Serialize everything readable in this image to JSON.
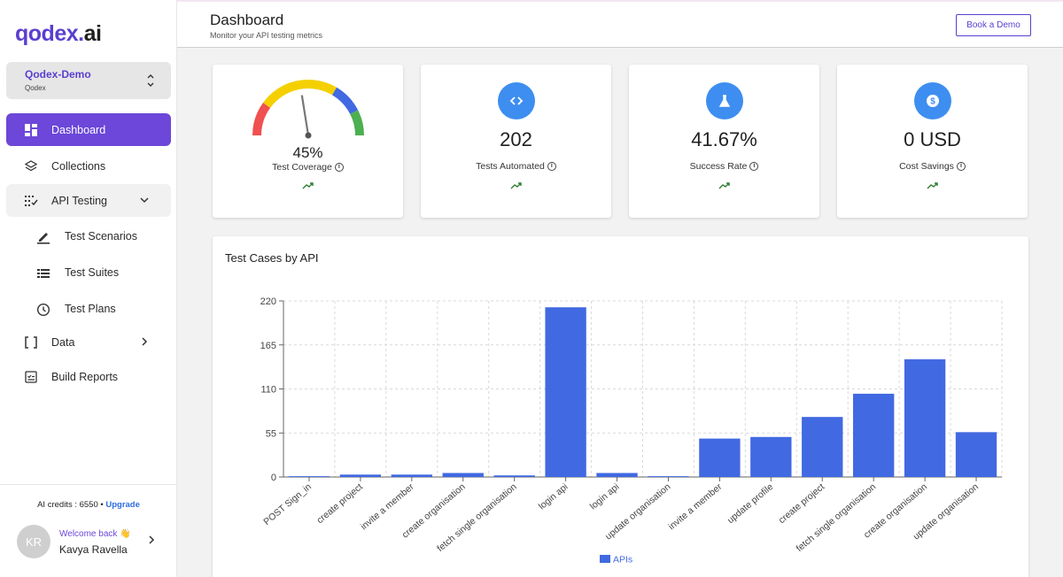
{
  "app": {
    "logo_main": "qodex",
    "logo_dot": ".",
    "logo_ai": "ai"
  },
  "org": {
    "name": "Qodex-Demo",
    "sub": "Qodex"
  },
  "nav": {
    "dashboard": "Dashboard",
    "collections": "Collections",
    "api_testing": "API Testing",
    "test_scenarios": "Test Scenarios",
    "test_suites": "Test Suites",
    "test_plans": "Test Plans",
    "data": "Data",
    "build_reports": "Build Reports"
  },
  "footer": {
    "credits": "AI credits : 6550 • ",
    "upgrade": "Upgrade",
    "avatar_initials": "KR",
    "welcome": "Welcome back 👋",
    "user_name": "Kavya Ravella"
  },
  "header": {
    "title": "Dashboard",
    "subtitle": "Monitor your API testing metrics",
    "book_demo": "Book a Demo"
  },
  "kpis": {
    "coverage_value": "45%",
    "coverage_fraction": 0.45,
    "coverage_label": "Test Coverage",
    "automated_value": "202",
    "automated_label": "Tests Automated",
    "success_value": "41.67%",
    "success_label": "Success Rate",
    "savings_value": "0 USD",
    "savings_label": "Cost Savings",
    "icon_color": "#3d8ef0",
    "trend_color": "#2e7d32",
    "gauge_colors": [
      "#f05050",
      "#f5d000",
      "#4169e1",
      "#4caf50"
    ]
  },
  "chart_data": {
    "type": "bar",
    "title": "Test Cases by API",
    "categories": [
      "POST Sign_in",
      "create project",
      "invite a member",
      "create organisation",
      "fetch single organisation",
      "login api",
      "login api",
      "update organisation",
      "invite a member",
      "update profile",
      "create project",
      "fetch single organisation",
      "create organisation",
      "update organisation"
    ],
    "series": [
      {
        "name": "APIs",
        "values": [
          1,
          3,
          3,
          5,
          2,
          212,
          5,
          1,
          48,
          50,
          75,
          104,
          147,
          56
        ]
      }
    ],
    "yticks": [
      0,
      55,
      110,
      165,
      220
    ],
    "ylim": [
      0,
      220
    ],
    "color": "#4169e1",
    "grid": true,
    "legend": "bottom"
  }
}
